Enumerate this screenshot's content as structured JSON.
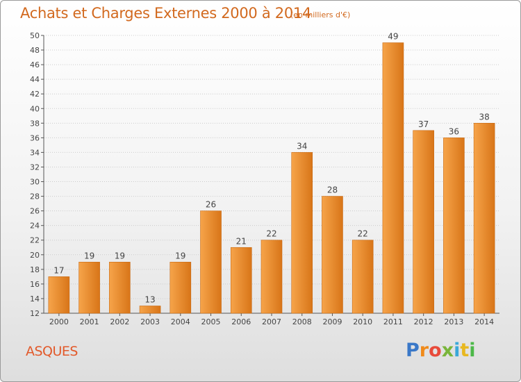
{
  "title": "Achats et Charges Externes 2000 à 2014",
  "subtitle": "(en milliers d'€)",
  "commune": "ASQUES",
  "logo": {
    "letters": [
      "P",
      "r",
      "o",
      "x",
      "i",
      "t",
      "i"
    ],
    "colors": [
      "#3a78c8",
      "#f08a1a",
      "#e84a3a",
      "#79b53a",
      "#3aa8d8",
      "#e8b820",
      "#4cb848"
    ]
  },
  "colors": {
    "bar_light": "#f6a44a",
    "bar_dark": "#d87518",
    "text": "#d2691e",
    "grid": "#cccccc"
  },
  "chart_data": {
    "type": "bar",
    "categories": [
      "2000",
      "2001",
      "2002",
      "2003",
      "2004",
      "2005",
      "2006",
      "2007",
      "2008",
      "2009",
      "2010",
      "2011",
      "2012",
      "2013",
      "2014"
    ],
    "values": [
      17,
      19,
      19,
      13,
      19,
      26,
      21,
      22,
      34,
      28,
      22,
      49,
      37,
      36,
      38
    ],
    "title": "Achats et Charges Externes 2000 à 2014",
    "ylim": [
      12,
      50
    ],
    "yticks": [
      12,
      14,
      16,
      18,
      20,
      22,
      24,
      26,
      28,
      30,
      32,
      34,
      36,
      38,
      40,
      42,
      44,
      46,
      48,
      50
    ],
    "grid": true
  }
}
